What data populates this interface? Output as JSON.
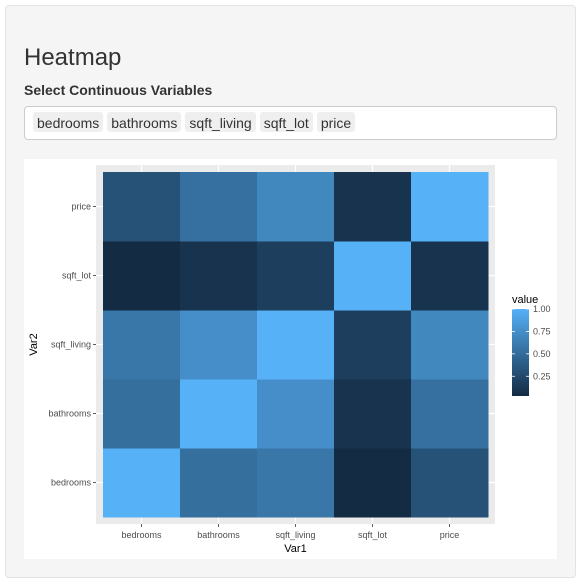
{
  "page": {
    "title": "Heatmap",
    "select_label": "Select Continuous Variables",
    "selected_variables": [
      "bedrooms",
      "bathrooms",
      "sqft_living",
      "sqft_lot",
      "price"
    ]
  },
  "colors": {
    "low": "#132B43",
    "high": "#56B1F7",
    "panel_background": "#EBEBEB",
    "gridline": "#FFFFFF"
  },
  "chart_data": {
    "type": "heatmap",
    "xlabel": "Var1",
    "ylabel": "Var2",
    "x_categories": [
      "bedrooms",
      "bathrooms",
      "sqft_living",
      "sqft_lot",
      "price"
    ],
    "y_categories": [
      "bedrooms",
      "bathrooms",
      "sqft_living",
      "sqft_lot",
      "price"
    ],
    "values": [
      [
        1.0,
        0.52,
        0.58,
        0.03,
        0.31
      ],
      [
        0.52,
        1.0,
        0.75,
        0.09,
        0.53
      ],
      [
        0.58,
        0.75,
        1.0,
        0.17,
        0.7
      ],
      [
        0.03,
        0.09,
        0.17,
        1.0,
        0.09
      ],
      [
        0.31,
        0.53,
        0.7,
        0.09,
        1.0
      ]
    ],
    "legend": {
      "title": "value",
      "ticks": [
        "1.00",
        "0.75",
        "0.50",
        "0.25"
      ],
      "tick_values": [
        1.0,
        0.75,
        0.5,
        0.25
      ],
      "range": [
        0.03,
        1.0
      ],
      "position": "right"
    },
    "grid": true
  }
}
